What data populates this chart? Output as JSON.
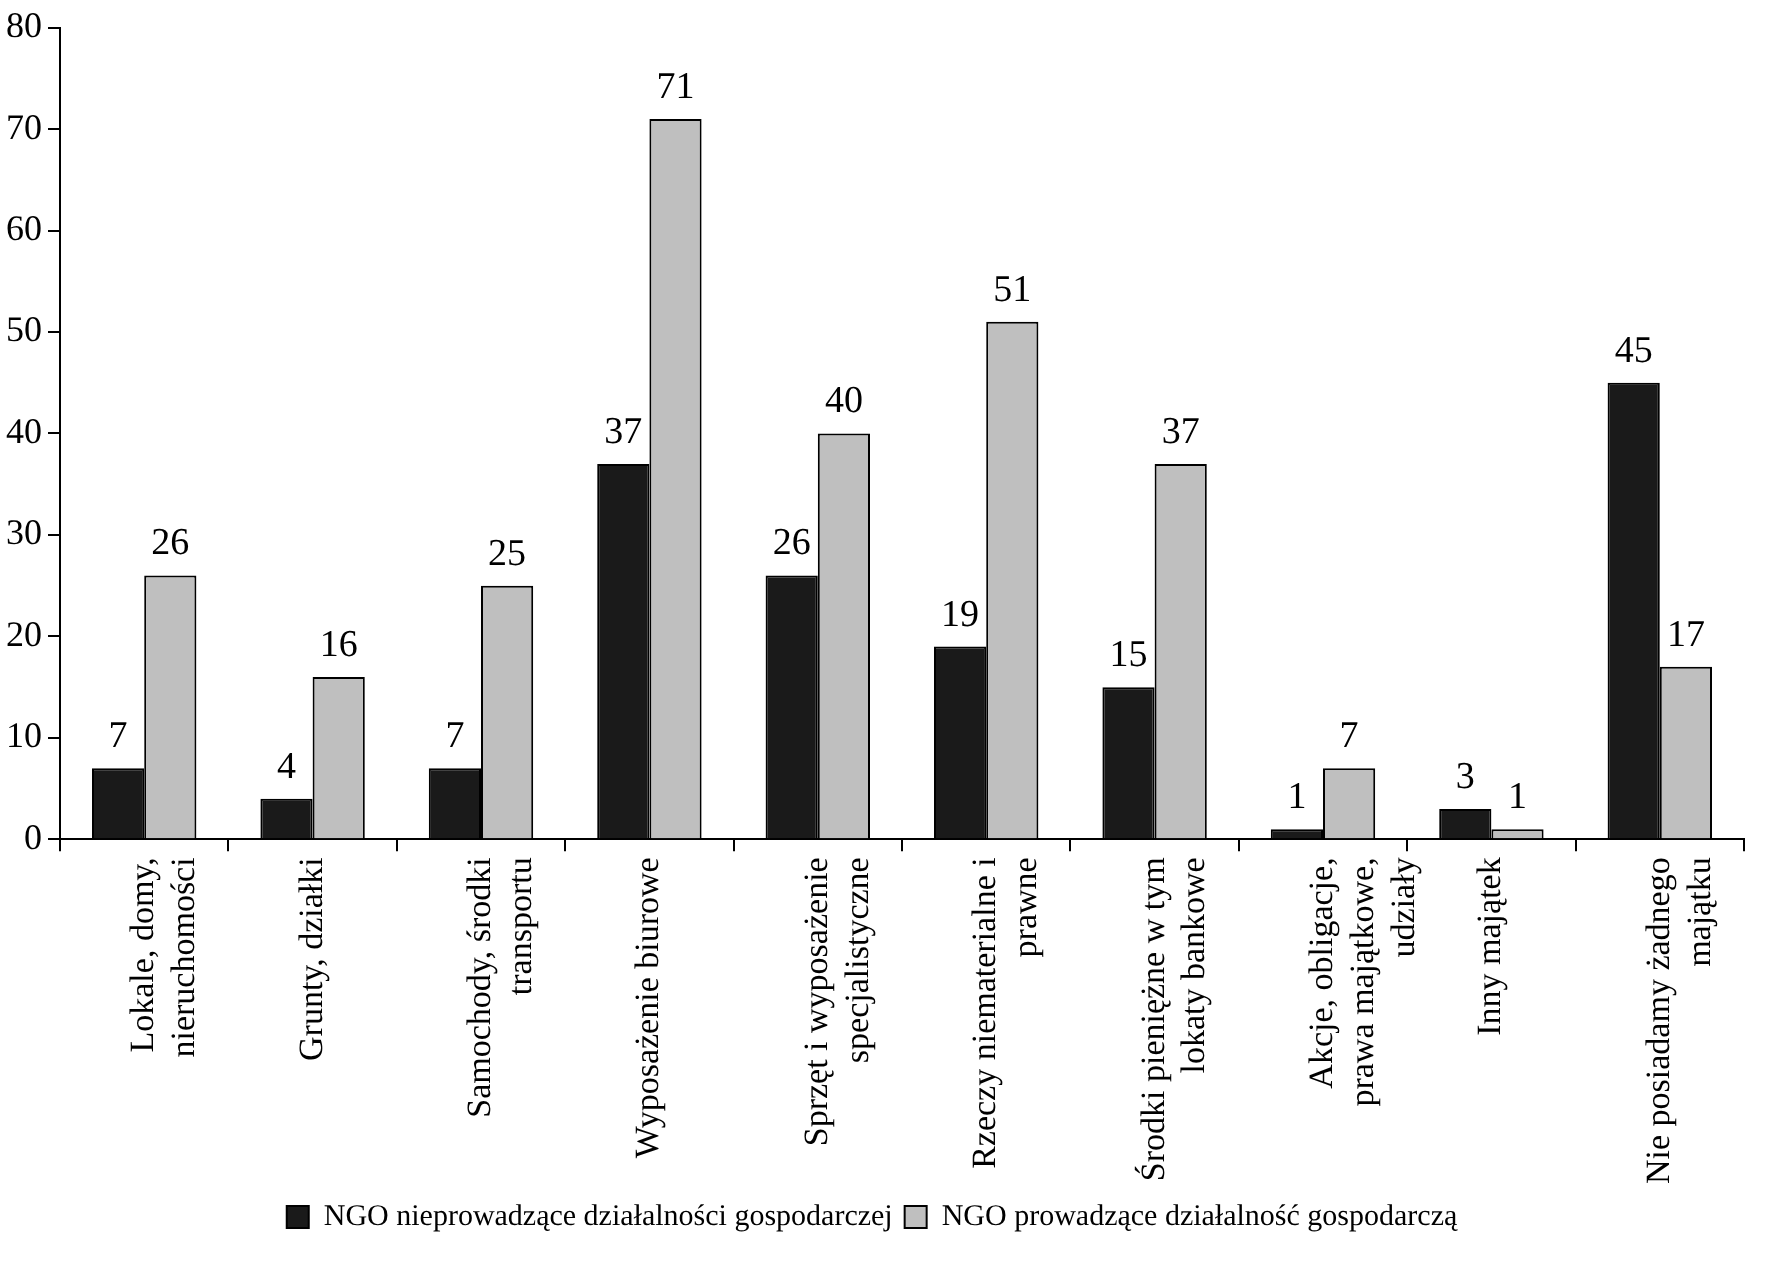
{
  "chart_data": {
    "type": "bar",
    "categories": [
      "Lokale, domy, nieruchomości",
      "Grunty, działki",
      "Samochody, środki transportu",
      "Wyposażenie biurowe",
      "Sprzęt i wyposażenie specjalistyczne",
      "Rzeczy niematerialne i prawne",
      "Środki pieniężne w tym lokaty bankowe",
      "Akcje, obligacje, prawa majątkowe, udziały",
      "Inny majątek",
      "Nie posiadamy żadnego majątku"
    ],
    "series": [
      {
        "name": "NGO nieprowadzące działalności gospodarczej",
        "color": "#1a1a1a",
        "values": [
          7,
          4,
          7,
          37,
          26,
          19,
          15,
          1,
          3,
          45
        ]
      },
      {
        "name": "NGO prowadzące działalność gospodarczą",
        "color": "#bfbfbf",
        "values": [
          26,
          16,
          25,
          71,
          40,
          51,
          37,
          7,
          1,
          17
        ]
      }
    ],
    "ylim": [
      0,
      80
    ],
    "yticks": [
      0,
      10,
      20,
      30,
      40,
      50,
      60,
      70,
      80
    ],
    "grid": false,
    "legend": "bottom",
    "data_labels": true
  }
}
